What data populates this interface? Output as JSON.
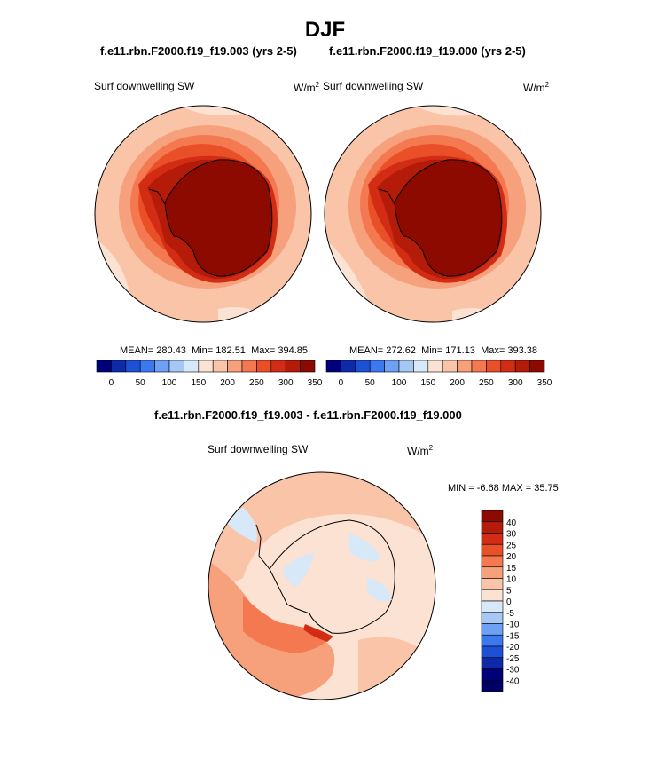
{
  "page": {
    "season": "DJF",
    "case1": "f.e11.rbn.F2000.f19_f19.003 (yrs 2-5)",
    "case2": "f.e11.rbn.F2000.f19_f19.000 (yrs 2-5)",
    "diff_title": "f.e11.rbn.F2000.f19_f19.003 - f.e11.rbn.F2000.f19_f19.000"
  },
  "chart_data": [
    {
      "type": "heatmap",
      "projection": "south polar stereographic",
      "variable": "Surf downwelling SW",
      "units": "W/m",
      "units_exp": "2",
      "stats": {
        "mean_label": "MEAN=",
        "mean": "280.43",
        "min_label": "Min=",
        "min": "182.51",
        "max_label": "Max=",
        "max": "394.85"
      },
      "colorbar": {
        "ticks": [
          "0",
          "50",
          "100",
          "150",
          "200",
          "250",
          "300",
          "350"
        ],
        "colors": [
          "#00007d",
          "#0d2aa8",
          "#1e50d6",
          "#3c78f0",
          "#6ea0f5",
          "#a5c8f5",
          "#d7e8f8",
          "#fbe2d2",
          "#f9c4a8",
          "#f7a07c",
          "#f47850",
          "#ea5028",
          "#d22d14",
          "#b41b08",
          "#8c0a00"
        ]
      }
    },
    {
      "type": "heatmap",
      "projection": "south polar stereographic",
      "variable": "Surf downwelling SW",
      "units": "W/m",
      "units_exp": "2",
      "stats": {
        "mean_label": "MEAN=",
        "mean": "272.62",
        "min_label": "Min=",
        "min": "171.13",
        "max_label": "Max=",
        "max": "393.38"
      },
      "colorbar": {
        "ticks": [
          "0",
          "50",
          "100",
          "150",
          "200",
          "250",
          "300",
          "350"
        ],
        "colors": [
          "#00007d",
          "#0d2aa8",
          "#1e50d6",
          "#3c78f0",
          "#6ea0f5",
          "#a5c8f5",
          "#d7e8f8",
          "#fbe2d2",
          "#f9c4a8",
          "#f7a07c",
          "#f47850",
          "#ea5028",
          "#d22d14",
          "#b41b08",
          "#8c0a00"
        ]
      }
    },
    {
      "type": "heatmap",
      "projection": "south polar stereographic",
      "variable": "Surf downwelling SW",
      "units": "W/m",
      "units_exp": "2",
      "stats": {
        "min_label": "MIN =",
        "min": "-6.68",
        "max_label": "MAX =",
        "max": "35.75"
      },
      "colorbar": {
        "orientation": "vertical",
        "ticks": [
          "40",
          "30",
          "25",
          "20",
          "15",
          "10",
          "5",
          "0",
          "-5",
          "-10",
          "-15",
          "-20",
          "-25",
          "-30",
          "-40"
        ],
        "colors": [
          "#8c0a00",
          "#b41b08",
          "#d22d14",
          "#ea5028",
          "#f47850",
          "#f7a07c",
          "#f9c4a8",
          "#fbe2d2",
          "#d7e8f8",
          "#a5c8f5",
          "#6ea0f5",
          "#3c78f0",
          "#1e50d6",
          "#0d2aa8",
          "#00007d",
          "#000064"
        ]
      }
    }
  ]
}
